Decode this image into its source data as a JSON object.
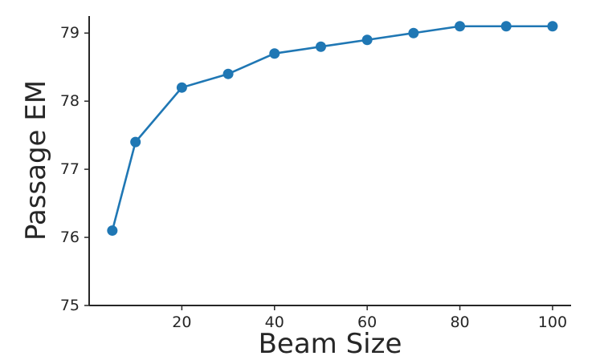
{
  "chart_data": {
    "type": "line",
    "title": "",
    "xlabel": "Beam Size",
    "ylabel": "Passage EM",
    "x": [
      5,
      10,
      20,
      30,
      40,
      50,
      60,
      70,
      80,
      90,
      100
    ],
    "series": [
      {
        "values": [
          76.1,
          77.4,
          78.2,
          78.4,
          78.7,
          78.8,
          78.9,
          79.0,
          79.1,
          79.1,
          79.1
        ]
      }
    ],
    "xlim": [
      0,
      104
    ],
    "ylim": [
      75,
      79.25
    ],
    "xticks": [
      20,
      40,
      60,
      80,
      100
    ],
    "yticks": [
      75,
      76,
      77,
      78,
      79
    ],
    "grid": false,
    "legend": "none",
    "colors": {
      "line": "#1f77b4",
      "axis": "#262626",
      "text": "#262626"
    }
  }
}
